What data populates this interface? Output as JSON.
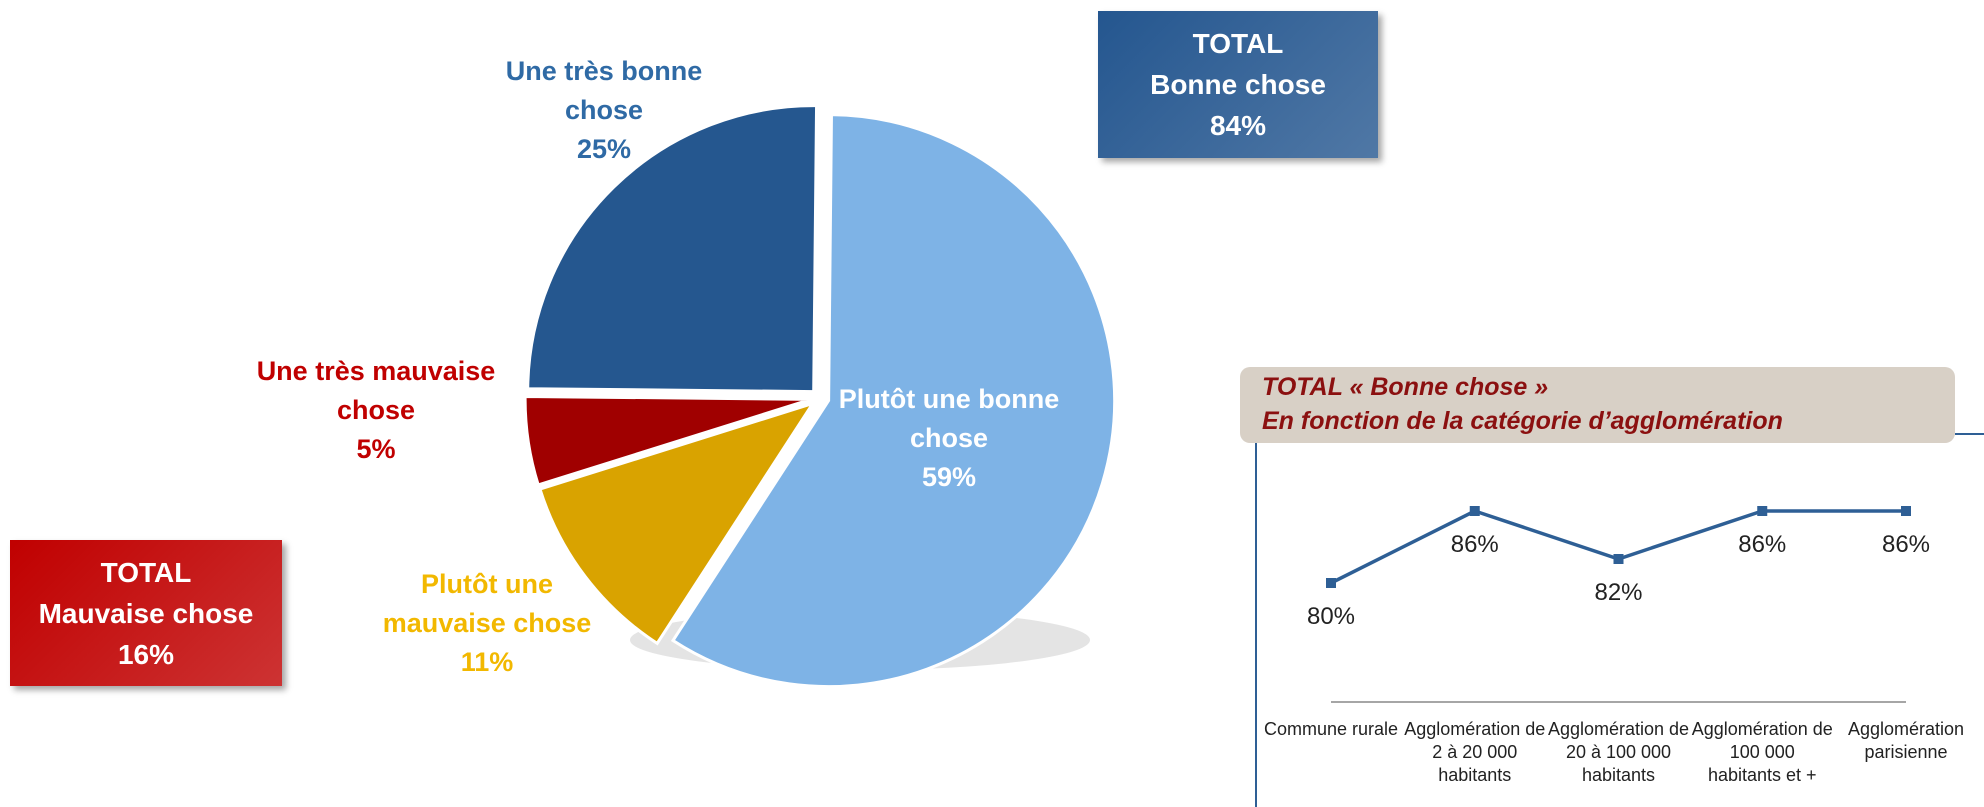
{
  "chart_data": [
    {
      "type": "pie",
      "categories": [
        "Plutôt une bonne chose",
        "Plutôt une mauvaise chose",
        "Une très mauvaise chose",
        "Une très bonne chose"
      ],
      "values": [
        59,
        11,
        5,
        25
      ],
      "value_labels": [
        "59%",
        "11%",
        "5%",
        "25%"
      ],
      "colors": [
        "#7eb3e6",
        "#d9a300",
        "#a00000",
        "#25578f"
      ],
      "label_colors": [
        "#ffffff",
        "#f2b800",
        "#c00000",
        "#2f6aa5"
      ],
      "annotations": [
        {
          "title": "TOTAL",
          "text": "Bonne chose",
          "value": "84%",
          "color": "#24568f"
        },
        {
          "title": "TOTAL",
          "text": "Mauvaise chose",
          "value": "16%",
          "color": "#c00000"
        }
      ]
    },
    {
      "type": "line",
      "title": "TOTAL « Bonne chose »",
      "subtitle": "En fonction de la catégorie d’agglomération",
      "categories": [
        "Commune rurale",
        "Agglomération de 2 à 20 000 habitants",
        "Agglomération de 20 à 100 000 habitants",
        "Agglomération de 100 000 habitants et +",
        "Agglomération parisienne"
      ],
      "values": [
        80,
        86,
        82,
        86,
        86
      ],
      "value_labels": [
        "80%",
        "86%",
        "82%",
        "86%",
        "86%"
      ],
      "color": "#2e5f95",
      "ylim": [
        70,
        90
      ]
    }
  ]
}
